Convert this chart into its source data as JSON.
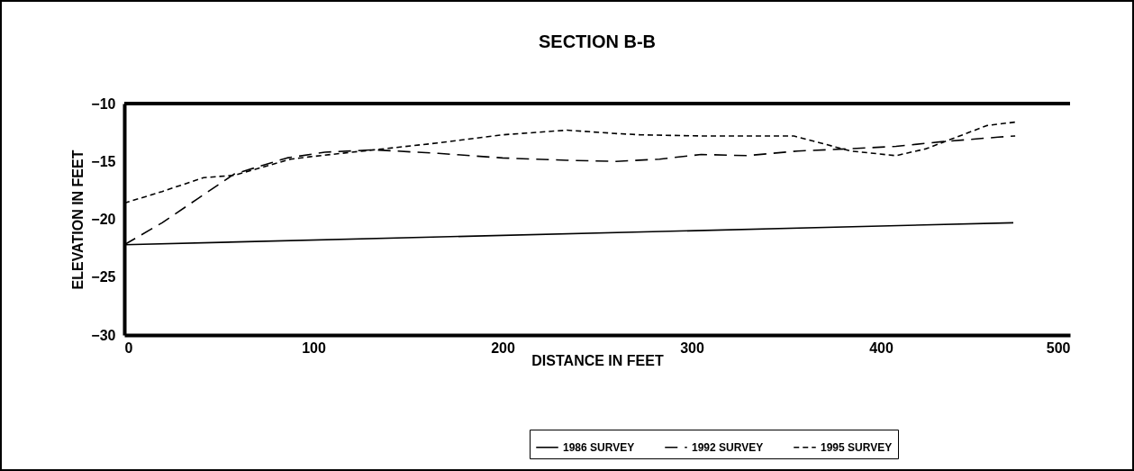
{
  "chart_data": {
    "type": "line",
    "title": "SECTION B-B",
    "xlabel": "DISTANCE IN FEET",
    "ylabel": "ELEVATION IN FEET",
    "xlim": [
      0,
      500
    ],
    "xticks": [
      0,
      100,
      200,
      300,
      400,
      500
    ],
    "ylim": [
      -30,
      -10
    ],
    "yticks": [
      -30,
      -25,
      -20,
      -15,
      -10
    ],
    "grid": false,
    "legend": "bottom right",
    "marker": "none",
    "series": [
      {
        "name": "1986 SURVEY",
        "color": "#000000",
        "line_style": "solid",
        "x": [
          0,
          470
        ],
        "values": [
          -22.2,
          -20.3
        ]
      },
      {
        "name": "1992 SURVEY",
        "color": "#000000",
        "line_style": "dashed",
        "x": [
          0,
          20,
          39,
          58,
          86,
          106,
          132,
          166,
          200,
          217,
          234,
          260,
          283,
          305,
          329,
          356,
          384,
          408,
          432,
          462,
          471
        ],
        "values": [
          -22.2,
          -20.3,
          -18.2,
          -16.1,
          -14.7,
          -14.2,
          -14.0,
          -14.3,
          -14.7,
          -14.8,
          -14.9,
          -15.0,
          -14.8,
          -14.4,
          -14.5,
          -14.1,
          -13.9,
          -13.7,
          -13.3,
          -12.9,
          -12.8
        ]
      },
      {
        "name": "1995 SURVEY",
        "color": "#000000",
        "line_style": "dotted",
        "x": [
          0,
          20,
          42,
          58,
          88,
          98,
          132,
          166,
          200,
          234,
          261,
          273,
          305,
          337,
          354,
          368,
          384,
          408,
          424,
          440,
          456,
          471
        ],
        "values": [
          -18.6,
          -17.6,
          -16.4,
          -16.2,
          -14.8,
          -14.6,
          -14.0,
          -13.4,
          -12.7,
          -12.3,
          -12.6,
          -12.7,
          -12.8,
          -12.8,
          -12.8,
          -13.4,
          -14.1,
          -14.5,
          -13.9,
          -12.9,
          -11.9,
          -11.6
        ]
      }
    ]
  }
}
